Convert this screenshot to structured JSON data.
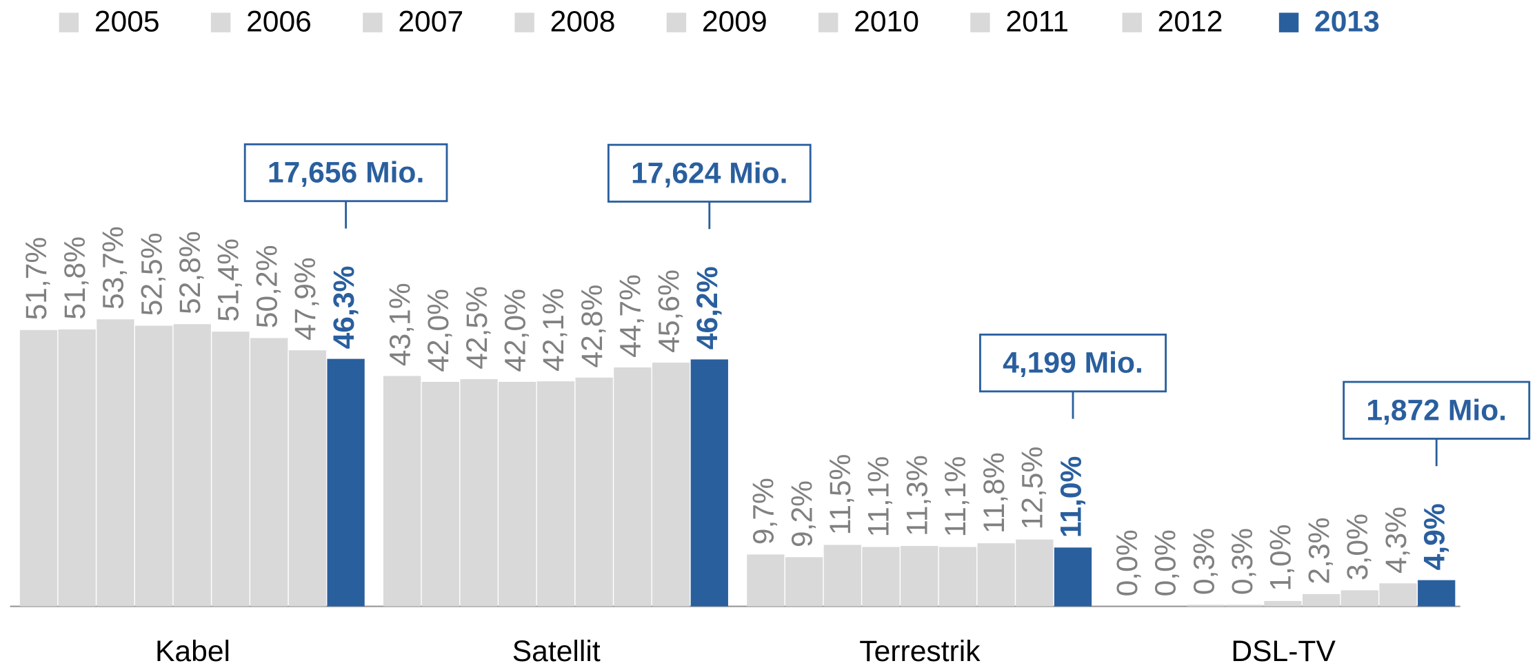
{
  "chart_data": {
    "type": "bar",
    "categories": [
      "Kabel",
      "Satellit",
      "Terrestrik",
      "DSL-TV"
    ],
    "series": [
      {
        "name": "2005",
        "color": "#d9d9d9",
        "values": [
          51.7,
          43.1,
          9.7,
          0.0
        ],
        "value_labels": [
          "51,7%",
          "43,1%",
          "9,7%",
          "0,0%"
        ]
      },
      {
        "name": "2006",
        "color": "#d9d9d9",
        "values": [
          51.8,
          42.0,
          9.2,
          0.0
        ],
        "value_labels": [
          "51,8%",
          "42,0%",
          "9,2%",
          "0,0%"
        ]
      },
      {
        "name": "2007",
        "color": "#d9d9d9",
        "values": [
          53.7,
          42.5,
          11.5,
          0.3
        ],
        "value_labels": [
          "53,7%",
          "42,5%",
          "11,5%",
          "0,3%"
        ]
      },
      {
        "name": "2008",
        "color": "#d9d9d9",
        "values": [
          52.5,
          42.0,
          11.1,
          0.3
        ],
        "value_labels": [
          "52,5%",
          "42,0%",
          "11,1%",
          "0,3%"
        ]
      },
      {
        "name": "2009",
        "color": "#d9d9d9",
        "values": [
          52.8,
          42.1,
          11.3,
          1.0
        ],
        "value_labels": [
          "52,8%",
          "42,1%",
          "11,3%",
          "1,0%"
        ]
      },
      {
        "name": "2010",
        "color": "#d9d9d9",
        "values": [
          51.4,
          42.8,
          11.1,
          2.3
        ],
        "value_labels": [
          "51,4%",
          "42,8%",
          "11,1%",
          "2,3%"
        ]
      },
      {
        "name": "2011",
        "color": "#d9d9d9",
        "values": [
          50.2,
          44.7,
          11.8,
          3.0
        ],
        "value_labels": [
          "50,2%",
          "44,7%",
          "11,8%",
          "3,0%"
        ]
      },
      {
        "name": "2012",
        "color": "#d9d9d9",
        "values": [
          47.9,
          45.6,
          12.5,
          4.3
        ],
        "value_labels": [
          "47,9%",
          "45,6%",
          "12,5%",
          "4,3%"
        ]
      },
      {
        "name": "2013",
        "color": "#2a5f9e",
        "values": [
          46.3,
          46.2,
          11.0,
          4.9
        ],
        "value_labels": [
          "46,3%",
          "46,2%",
          "11,0%",
          "4,9%"
        ]
      }
    ],
    "annotations": [
      "17,656 Mio.",
      "17,624 Mio.",
      "4,199 Mio.",
      "1,872 Mio."
    ]
  }
}
